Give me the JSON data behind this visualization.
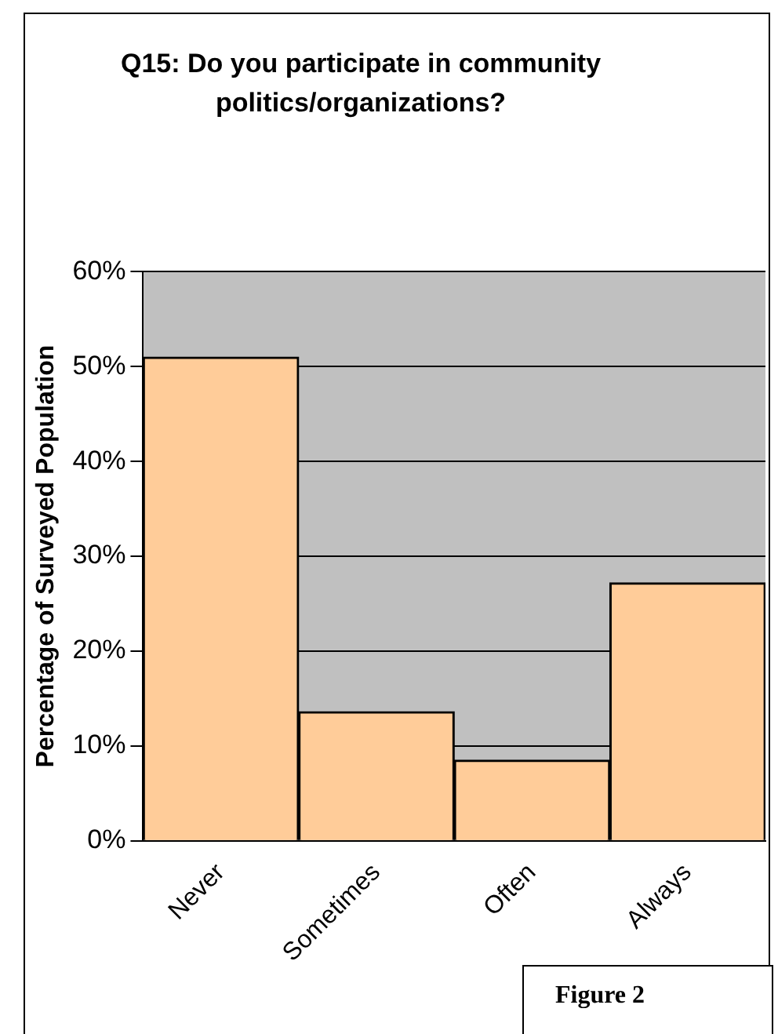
{
  "chart_data": {
    "type": "bar",
    "title": "Q15: Do you participate in community politics/organizations?",
    "ylabel": "Percentage of Surveyed Population",
    "categories": [
      "Never",
      "Sometimes",
      "Often",
      "Always"
    ],
    "values": [
      51,
      13.6,
      8.5,
      27.2
    ],
    "color": "#ffcc99",
    "ylim": [
      0,
      60
    ],
    "yticks": [
      {
        "value": 0,
        "label": "0%"
      },
      {
        "value": 10,
        "label": "10%"
      },
      {
        "value": 20,
        "label": "20%"
      },
      {
        "value": 30,
        "label": "30%"
      },
      {
        "value": 40,
        "label": "40%"
      },
      {
        "value": 50,
        "label": "50%"
      },
      {
        "value": 60,
        "label": "60%"
      }
    ],
    "grid": "y",
    "legend": false,
    "annotations": [
      "Figure 2"
    ]
  }
}
